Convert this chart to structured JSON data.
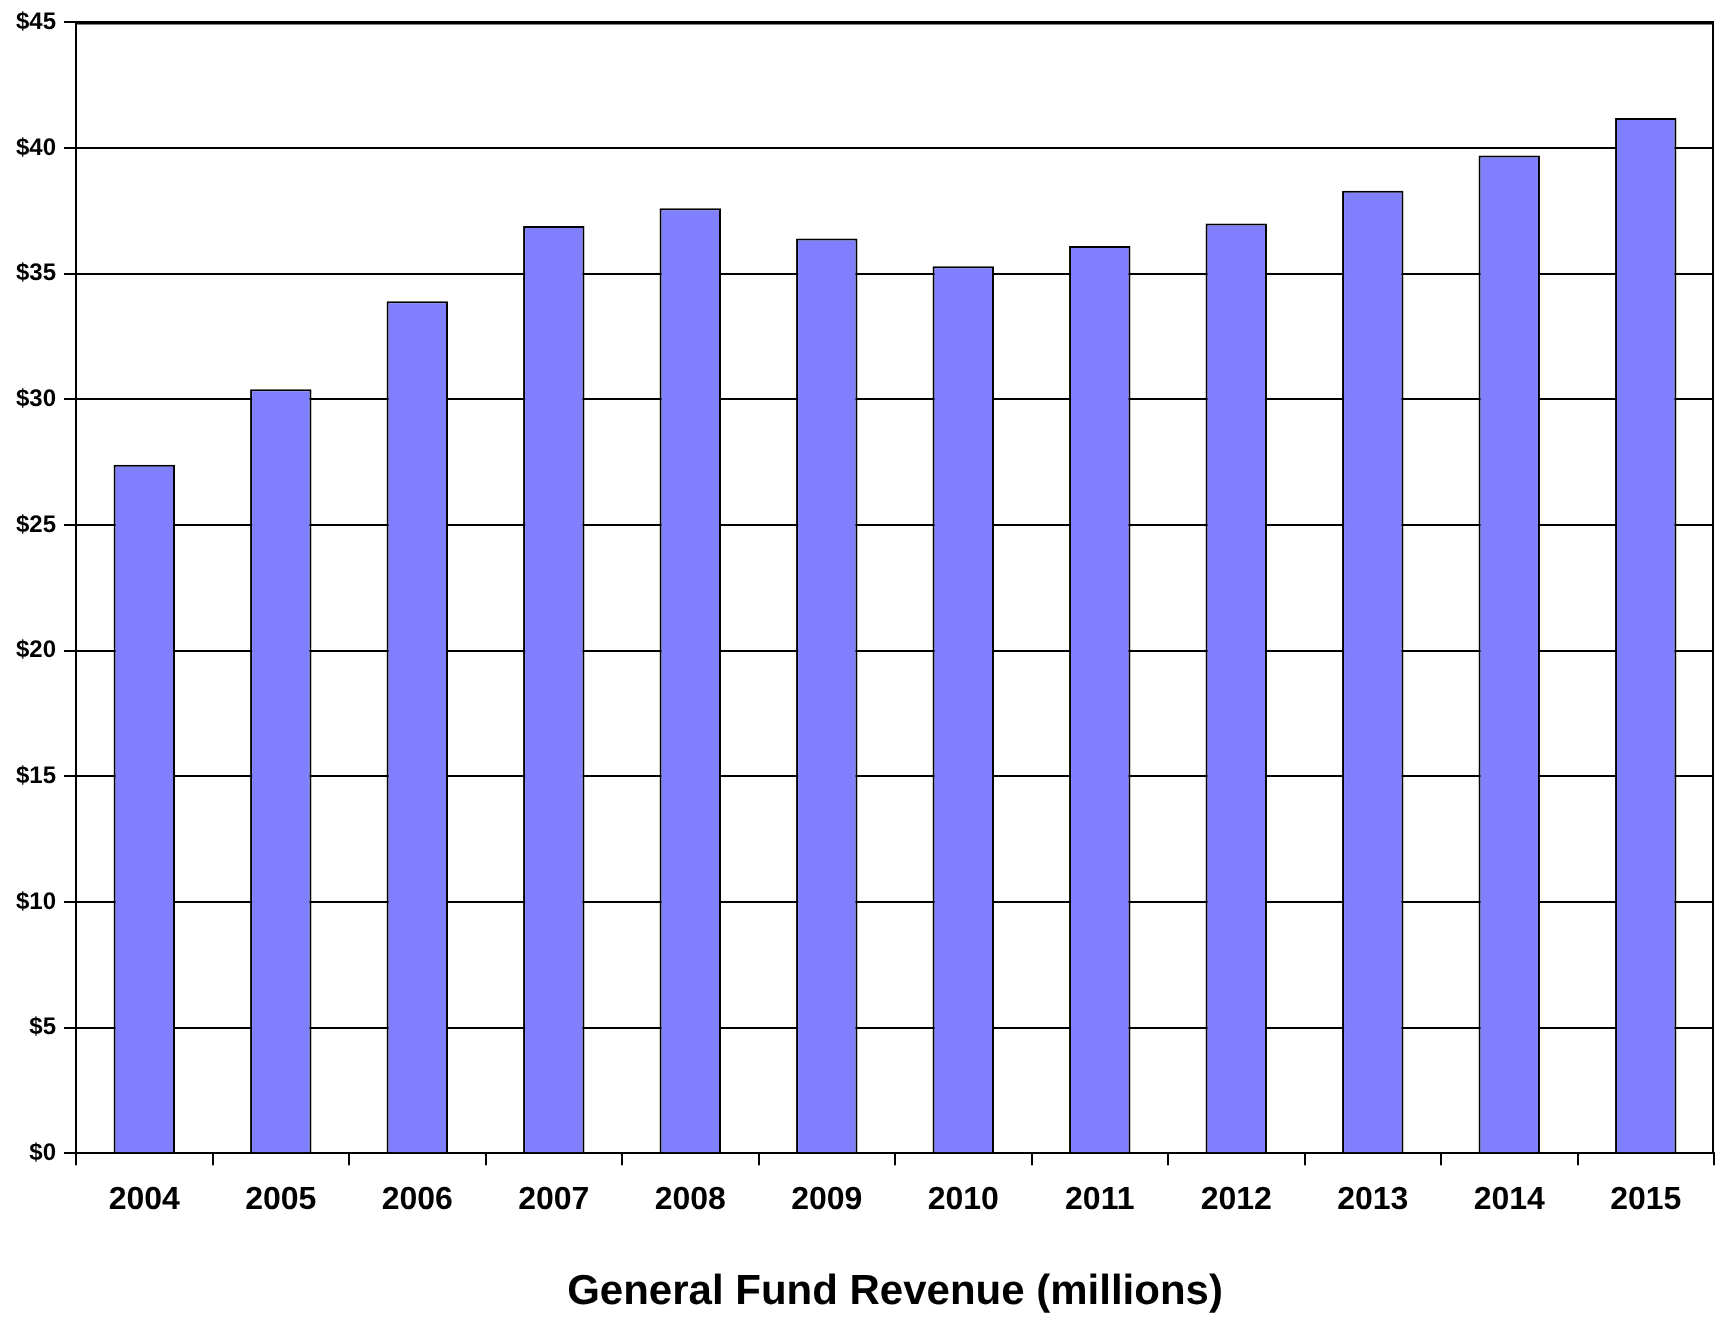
{
  "chart_data": {
    "type": "bar",
    "xlabel": "General Fund Revenue (millions)",
    "categories": [
      "2004",
      "2005",
      "2006",
      "2007",
      "2008",
      "2009",
      "2010",
      "2011",
      "2012",
      "2013",
      "2014",
      "2015"
    ],
    "values": [
      27.4,
      30.4,
      33.9,
      36.9,
      37.6,
      36.4,
      35.3,
      36.1,
      37.0,
      38.3,
      39.7,
      41.2
    ],
    "color": "#8080ff",
    "ylim": [
      0,
      45
    ],
    "yticks": [
      {
        "value": 0,
        "label": "$0"
      },
      {
        "value": 5,
        "label": "$5"
      },
      {
        "value": 10,
        "label": "$10"
      },
      {
        "value": 15,
        "label": "$15"
      },
      {
        "value": 20,
        "label": "$20"
      },
      {
        "value": 25,
        "label": "$25"
      },
      {
        "value": 30,
        "label": "$30"
      },
      {
        "value": 35,
        "label": "$35"
      },
      {
        "value": 40,
        "label": "$40"
      },
      {
        "value": 45,
        "label": "$45"
      }
    ],
    "grid": "y",
    "legend": false
  }
}
